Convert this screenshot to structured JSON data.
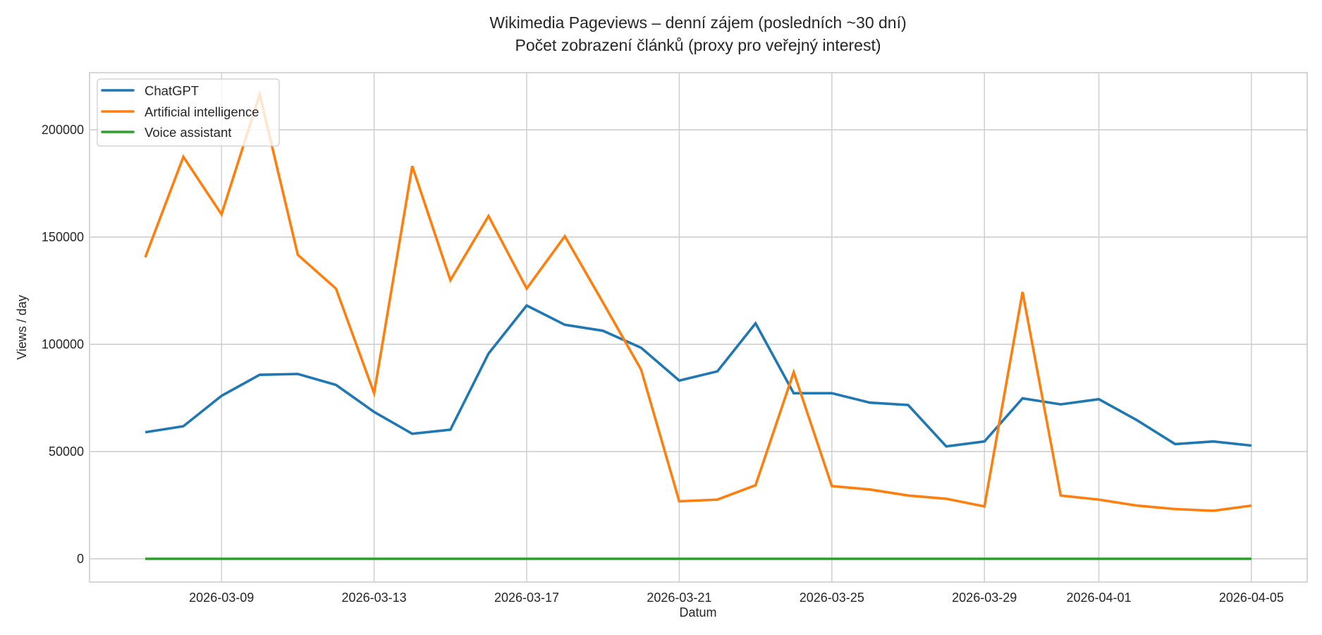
{
  "chart_data": {
    "type": "line",
    "title": "Wikimedia Pageviews – denní zájem (posledních ~30 dní)",
    "subtitle": "Počet zobrazení článků (proxy pro veřejný interest)",
    "xlabel": "Datum",
    "ylabel": "Views / day",
    "ylim": [
      -21000,
      225000
    ],
    "yticks": [
      0,
      50000,
      100000,
      150000,
      200000
    ],
    "ytick_labels": [
      "0",
      "50000",
      "100000",
      "150000",
      "200000"
    ],
    "xtick_labels": [
      "2026-03-09",
      "2026-03-13",
      "2026-03-17",
      "2026-03-21",
      "2026-03-25",
      "2026-03-29",
      "2026-04-01",
      "2026-04-05"
    ],
    "xtick_day_index": [
      2,
      6,
      10,
      14,
      18,
      22,
      25,
      29
    ],
    "grid": true,
    "legend_position": "upper left",
    "x": [
      "2026-03-07",
      "2026-03-08",
      "2026-03-09",
      "2026-03-10",
      "2026-03-11",
      "2026-03-12",
      "2026-03-13",
      "2026-03-14",
      "2026-03-15",
      "2026-03-16",
      "2026-03-17",
      "2026-03-18",
      "2026-03-19",
      "2026-03-20",
      "2026-03-21",
      "2026-03-22",
      "2026-03-23",
      "2026-03-24",
      "2026-03-25",
      "2026-03-26",
      "2026-03-27",
      "2026-03-28",
      "2026-03-29",
      "2026-03-30",
      "2026-03-31",
      "2026-04-01",
      "2026-04-02",
      "2026-04-03",
      "2026-04-04",
      "2026-04-05"
    ],
    "series": [
      {
        "name": "ChatGPT",
        "color": "#1f77b4",
        "values": [
          59000,
          61800,
          76000,
          85800,
          86200,
          81100,
          68500,
          58300,
          60200,
          95700,
          118100,
          109100,
          106300,
          98400,
          83100,
          87400,
          109800,
          77200,
          77200,
          72800,
          71700,
          52400,
          54700,
          74800,
          72000,
          74400,
          64600,
          53500,
          54700,
          52800
        ]
      },
      {
        "name": "Artificial intelligence",
        "color": "#ff7f0e",
        "values": [
          140600,
          187400,
          160600,
          216500,
          141700,
          126000,
          77200,
          183100,
          129900,
          159800,
          126000,
          150400,
          119500,
          88200,
          26800,
          27600,
          34300,
          87000,
          33900,
          32300,
          29500,
          28000,
          24400,
          124400,
          29500,
          27600,
          24800,
          23200,
          22400,
          24800
        ]
      },
      {
        "name": "Voice assistant",
        "color": "#2ca02c",
        "values": [
          0,
          0,
          0,
          0,
          0,
          0,
          0,
          0,
          0,
          0,
          0,
          0,
          0,
          0,
          0,
          0,
          0,
          0,
          0,
          0,
          0,
          0,
          0,
          0,
          0,
          0,
          0,
          0,
          0,
          0
        ]
      }
    ]
  },
  "legend": {
    "items": [
      {
        "label": "ChatGPT",
        "color": "#1f77b4"
      },
      {
        "label": "Artificial intelligence",
        "color": "#ff7f0e"
      },
      {
        "label": "Voice assistant",
        "color": "#2ca02c"
      }
    ]
  },
  "style": {
    "grid_color": "#cccccc",
    "spine_color": "#cccccc",
    "text_color": "#262626"
  }
}
